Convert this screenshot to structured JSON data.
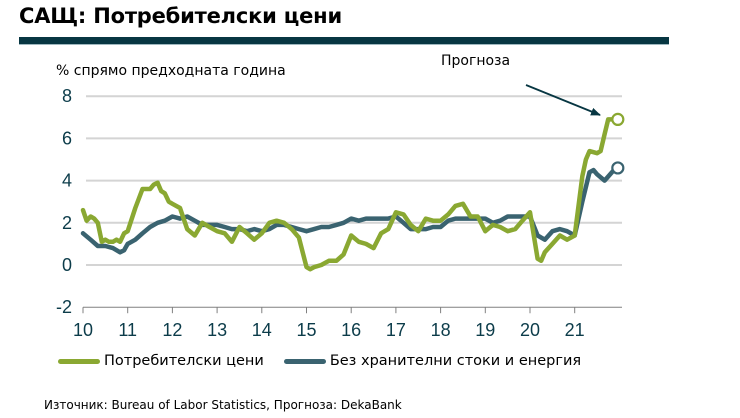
{
  "header": {
    "title": "САЩ: Потребителски цени"
  },
  "chart_data": {
    "type": "line",
    "title": "САЩ: Потребителски цени",
    "ylabel": "% спрямо предходната година",
    "xlabel": "",
    "ylim": [
      -2,
      8
    ],
    "yticks": [
      8,
      6,
      4,
      2,
      0,
      -2
    ],
    "xticks": [
      "10",
      "11",
      "12",
      "13",
      "14",
      "15",
      "16",
      "17",
      "18",
      "19",
      "20",
      "21"
    ],
    "xlim": [
      2010,
      2021.95
    ],
    "grid": true,
    "legend_position": "bottom",
    "annotation": "Прогноза",
    "series": [
      {
        "name": "Потребителски цени",
        "color": "#8aa832",
        "x": [
          2010.0,
          2010.08,
          2010.17,
          2010.25,
          2010.33,
          2010.42,
          2010.5,
          2010.58,
          2010.67,
          2010.75,
          2010.83,
          2010.92,
          2011.0,
          2011.17,
          2011.33,
          2011.5,
          2011.58,
          2011.67,
          2011.75,
          2011.83,
          2011.92,
          2012.0,
          2012.17,
          2012.33,
          2012.5,
          2012.67,
          2012.83,
          2013.0,
          2013.17,
          2013.33,
          2013.5,
          2013.67,
          2013.83,
          2014.0,
          2014.17,
          2014.33,
          2014.5,
          2014.67,
          2014.83,
          2015.0,
          2015.08,
          2015.17,
          2015.33,
          2015.5,
          2015.67,
          2015.83,
          2016.0,
          2016.17,
          2016.33,
          2016.5,
          2016.67,
          2016.83,
          2017.0,
          2017.17,
          2017.33,
          2017.5,
          2017.67,
          2017.83,
          2018.0,
          2018.17,
          2018.33,
          2018.5,
          2018.67,
          2018.83,
          2019.0,
          2019.17,
          2019.33,
          2019.5,
          2019.67,
          2019.83,
          2020.0,
          2020.17,
          2020.25,
          2020.33,
          2020.5,
          2020.67,
          2020.83,
          2021.0,
          2021.17,
          2021.25,
          2021.33,
          2021.5,
          2021.58,
          2021.67,
          2021.75,
          2021.92
        ],
        "values": [
          2.6,
          2.1,
          2.3,
          2.2,
          2.0,
          1.1,
          1.2,
          1.1,
          1.1,
          1.2,
          1.1,
          1.5,
          1.6,
          2.7,
          3.6,
          3.6,
          3.8,
          3.9,
          3.5,
          3.4,
          3.0,
          2.9,
          2.7,
          1.7,
          1.4,
          2.0,
          1.8,
          1.6,
          1.5,
          1.1,
          1.8,
          1.5,
          1.2,
          1.5,
          2.0,
          2.1,
          2.0,
          1.7,
          1.3,
          -0.1,
          -0.2,
          -0.1,
          0.0,
          0.2,
          0.2,
          0.5,
          1.4,
          1.1,
          1.0,
          0.8,
          1.5,
          1.7,
          2.5,
          2.4,
          1.9,
          1.6,
          2.2,
          2.1,
          2.1,
          2.4,
          2.8,
          2.9,
          2.3,
          2.3,
          1.6,
          1.9,
          1.8,
          1.6,
          1.7,
          2.1,
          2.5,
          0.3,
          0.2,
          0.6,
          1.0,
          1.4,
          1.2,
          1.4,
          4.2,
          5.0,
          5.4,
          5.3,
          5.4,
          6.2,
          6.9,
          6.9
        ]
      },
      {
        "name": "Без хранителни стоки и енергия",
        "color": "#3a6370",
        "x": [
          2010.0,
          2010.17,
          2010.33,
          2010.5,
          2010.67,
          2010.83,
          2010.92,
          2011.0,
          2011.17,
          2011.33,
          2011.5,
          2011.67,
          2011.83,
          2012.0,
          2012.17,
          2012.33,
          2012.5,
          2012.67,
          2012.83,
          2013.0,
          2013.17,
          2013.33,
          2013.5,
          2013.67,
          2013.83,
          2014.0,
          2014.17,
          2014.33,
          2014.5,
          2014.67,
          2014.83,
          2015.0,
          2015.17,
          2015.33,
          2015.5,
          2015.67,
          2015.83,
          2016.0,
          2016.17,
          2016.33,
          2016.5,
          2016.67,
          2016.83,
          2017.0,
          2017.17,
          2017.33,
          2017.5,
          2017.67,
          2017.83,
          2018.0,
          2018.17,
          2018.33,
          2018.5,
          2018.67,
          2018.83,
          2019.0,
          2019.17,
          2019.33,
          2019.5,
          2019.67,
          2019.83,
          2020.0,
          2020.17,
          2020.33,
          2020.5,
          2020.67,
          2020.83,
          2021.0,
          2021.17,
          2021.33,
          2021.42,
          2021.5,
          2021.67,
          2021.92
        ],
        "values": [
          1.5,
          1.2,
          0.9,
          0.9,
          0.8,
          0.6,
          0.7,
          1.0,
          1.2,
          1.5,
          1.8,
          2.0,
          2.1,
          2.3,
          2.2,
          2.3,
          2.1,
          1.9,
          1.9,
          1.9,
          1.8,
          1.7,
          1.7,
          1.6,
          1.7,
          1.6,
          1.7,
          1.9,
          1.9,
          1.8,
          1.7,
          1.6,
          1.7,
          1.8,
          1.8,
          1.9,
          2.0,
          2.2,
          2.1,
          2.2,
          2.2,
          2.2,
          2.2,
          2.3,
          2.0,
          1.7,
          1.7,
          1.7,
          1.8,
          1.8,
          2.1,
          2.2,
          2.2,
          2.2,
          2.2,
          2.2,
          2.0,
          2.1,
          2.3,
          2.3,
          2.3,
          2.3,
          1.4,
          1.2,
          1.6,
          1.7,
          1.6,
          1.4,
          3.0,
          4.4,
          4.5,
          4.3,
          4.0,
          4.6
        ]
      }
    ],
    "forecast_points": [
      {
        "series": "Потребителски цени",
        "x": 2021.92,
        "value": 6.9
      },
      {
        "series": "Без хранителни стоки и енергия",
        "x": 2021.92,
        "value": 4.6
      }
    ]
  },
  "legend": {
    "items": [
      {
        "label": "Потребителски цени",
        "color": "#8aa832"
      },
      {
        "label": "Без хранителни стоки и енергия",
        "color": "#3a6370"
      }
    ]
  },
  "footer": {
    "source": "Източник: Bureau of Labor Statistics, Прогноза: DekaBank"
  }
}
